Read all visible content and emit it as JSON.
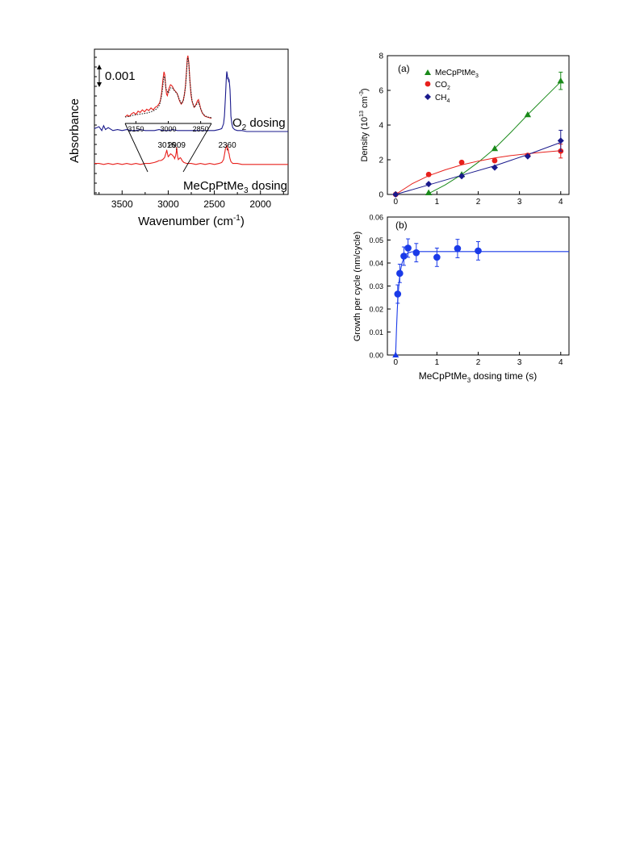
{
  "chart_data": [
    {
      "type": "line",
      "panel": "ir-spectra",
      "xlabel": "Wavenumber (cm",
      "xlabel_sup": "-1",
      "xlabel_tail": ")",
      "ylabel": "Absorbance",
      "xlim": [
        3800,
        1700
      ],
      "x_reversed": true,
      "xticks": [
        3500,
        3000,
        2500,
        2000
      ],
      "xtick_labels": [
        "3500",
        "3000",
        "2500",
        "2000"
      ],
      "scale_bar_label": "0.001",
      "series": [
        {
          "name": "O",
          "name_sub": "2",
          "name_tail": " dosing",
          "color": "#1a1a8c",
          "baseline": 0.0,
          "x": [
            3800,
            3750,
            3720,
            3700,
            3680,
            3650,
            3600,
            3550,
            3500,
            3450,
            3400,
            3350,
            3300,
            3250,
            3200,
            3150,
            3100,
            3050,
            3000,
            2950,
            2900,
            2850,
            2800,
            2750,
            2700,
            2650,
            2600,
            2550,
            2500,
            2450,
            2420,
            2400,
            2390,
            2380,
            2370,
            2365,
            2360,
            2355,
            2350,
            2345,
            2340,
            2335,
            2330,
            2325,
            2320,
            2310,
            2300,
            2280,
            2250,
            2200,
            2150,
            2100,
            2050,
            2000,
            1950,
            1900,
            1850,
            1800,
            1750,
            1700
          ],
          "y": [
            0.0003,
            0.0005,
            0.0001,
            0.0006,
            0.0002,
            0.0004,
            0.0001,
            0.0002,
            0.0001,
            0.0002,
            0.0001,
            0.0001,
            0.0002,
            0.0001,
            0.0001,
            0.0001,
            0.0002,
            0.0001,
            0.0001,
            0.0002,
            0.0001,
            0.0001,
            0.0001,
            0.0001,
            0.0001,
            0.0001,
            0.0001,
            0.0001,
            0.0001,
            0.0002,
            0.0003,
            0.0008,
            0.0016,
            0.0035,
            0.0055,
            0.0062,
            0.0059,
            0.0054,
            0.0056,
            0.0052,
            0.0053,
            0.0049,
            0.0043,
            0.003,
            0.0016,
            0.0008,
            0.0004,
            0.0002,
            0.0001,
            0.0001,
            0.0,
            0.0,
            0.0,
            0.0,
            0.0,
            0.0,
            0.0,
            0.0,
            0.0,
            0.0
          ]
        },
        {
          "name": "MeCpPtMe",
          "name_sub": "3",
          "name_tail": " dosing",
          "color": "#e8201c",
          "baseline": -0.0034,
          "x": [
            3800,
            3750,
            3700,
            3650,
            3600,
            3550,
            3500,
            3450,
            3400,
            3350,
            3300,
            3250,
            3200,
            3150,
            3120,
            3100,
            3080,
            3060,
            3040,
            3030,
            3020,
            3016,
            3010,
            3000,
            2990,
            2975,
            2960,
            2950,
            2940,
            2930,
            2920,
            2912,
            2909,
            2905,
            2898,
            2890,
            2880,
            2870,
            2860,
            2850,
            2840,
            2830,
            2800,
            2750,
            2700,
            2650,
            2600,
            2550,
            2500,
            2450,
            2420,
            2400,
            2390,
            2380,
            2370,
            2365,
            2360,
            2355,
            2350,
            2345,
            2340,
            2335,
            2330,
            2320,
            2300,
            2250,
            2200,
            2100,
            2000,
            1900,
            1800,
            1700
          ],
          "y": [
            0.0001,
            0.0001,
            0.0,
            0.0001,
            0.0,
            0.0001,
            0.0,
            0.0001,
            0.0,
            0.0001,
            0.0,
            0.0001,
            0.0001,
            0.0002,
            0.0003,
            0.0004,
            0.0004,
            0.0005,
            0.0007,
            0.001,
            0.0013,
            0.0015,
            0.0012,
            0.0008,
            0.0009,
            0.0011,
            0.001,
            0.0009,
            0.0008,
            0.0006,
            0.0009,
            0.0013,
            0.0018,
            0.0014,
            0.0008,
            0.0005,
            0.0006,
            0.0007,
            0.0006,
            0.0004,
            0.0003,
            0.0002,
            0.0001,
            0.0001,
            0.0,
            0.0001,
            0.0,
            0.0001,
            0.0,
            0.0001,
            0.0002,
            0.0005,
            0.001,
            0.0016,
            0.0018,
            0.002,
            0.0017,
            0.0015,
            0.0016,
            0.0012,
            0.0011,
            0.0008,
            0.0006,
            0.0003,
            0.0001,
            0.0001,
            0.0,
            0.0,
            0.0,
            0.0,
            0.0,
            0.0
          ]
        }
      ],
      "peak_labels": [
        {
          "x": 3016,
          "label": "3016"
        },
        {
          "x": 2909,
          "label": "2909"
        },
        {
          "x": 2360,
          "label": "2360"
        }
      ],
      "inset": {
        "xlim": [
          3200,
          2800
        ],
        "xticks": [
          3150,
          3000,
          2850
        ],
        "xtick_labels": [
          "3150",
          "3000",
          "2850"
        ],
        "zoom_region": [
          3250,
          2780
        ],
        "series": [
          {
            "color": "#e8201c",
            "style": "solid",
            "x": [
              3200,
              3190,
              3180,
              3170,
              3160,
              3150,
              3140,
              3130,
              3120,
              3110,
              3100,
              3090,
              3080,
              3070,
              3060,
              3050,
              3040,
              3035,
              3030,
              3025,
              3020,
              3016,
              3012,
              3008,
              3004,
              3000,
              2996,
              2990,
              2985,
              2980,
              2975,
              2970,
              2965,
              2960,
              2955,
              2950,
              2945,
              2940,
              2935,
              2930,
              2925,
              2920,
              2915,
              2912,
              2909,
              2905,
              2900,
              2895,
              2890,
              2885,
              2880,
              2875,
              2870,
              2865,
              2860,
              2855,
              2850,
              2845,
              2840,
              2835,
              2830,
              2820,
              2810,
              2800
            ],
            "y": [
              0.05,
              0.08,
              0.06,
              0.1,
              0.12,
              0.09,
              0.14,
              0.12,
              0.16,
              0.13,
              0.17,
              0.15,
              0.19,
              0.16,
              0.2,
              0.22,
              0.27,
              0.33,
              0.45,
              0.62,
              0.75,
              0.7,
              0.52,
              0.4,
              0.38,
              0.45,
              0.5,
              0.55,
              0.54,
              0.52,
              0.48,
              0.46,
              0.44,
              0.42,
              0.38,
              0.32,
              0.28,
              0.25,
              0.27,
              0.32,
              0.4,
              0.55,
              0.78,
              0.95,
              1.0,
              0.9,
              0.62,
              0.4,
              0.3,
              0.24,
              0.2,
              0.22,
              0.26,
              0.3,
              0.32,
              0.25,
              0.18,
              0.13,
              0.1,
              0.08,
              0.06,
              0.05,
              0.04,
              0.03
            ]
          },
          {
            "color": "#222222",
            "style": "dotted",
            "x": [
              3200,
              3180,
              3160,
              3140,
              3120,
              3100,
              3080,
              3060,
              3050,
              3040,
              3030,
              3020,
              3016,
              3010,
              3000,
              2990,
              2980,
              2970,
              2960,
              2950,
              2940,
              2930,
              2920,
              2912,
              2909,
              2905,
              2900,
              2890,
              2880,
              2870,
              2860,
              2850,
              2840,
              2830,
              2820,
              2800
            ],
            "y": [
              0.05,
              0.06,
              0.08,
              0.09,
              0.1,
              0.11,
              0.13,
              0.16,
              0.19,
              0.24,
              0.4,
              0.68,
              0.66,
              0.48,
              0.42,
              0.5,
              0.5,
              0.45,
              0.42,
              0.33,
              0.26,
              0.3,
              0.52,
              0.9,
              0.97,
              0.88,
              0.6,
              0.3,
              0.2,
              0.24,
              0.28,
              0.18,
              0.1,
              0.07,
              0.05,
              0.04
            ]
          }
        ]
      }
    },
    {
      "type": "scatter",
      "panel_label": "(a)",
      "ylabel": "Density (10",
      "ylabel_sup1": "13",
      "ylabel_mid": " cm",
      "ylabel_sup2": "-3",
      "ylabel_tail": ")",
      "xlim": [
        -0.2,
        4.2
      ],
      "ylim": [
        0,
        8
      ],
      "xticks": [
        0,
        1,
        2,
        3,
        4
      ],
      "yticks": [
        0,
        2,
        4,
        6,
        8
      ],
      "legend_position": "top-left",
      "series": [
        {
          "name": "MeCpPtMe",
          "name_sub": "3",
          "color": "#1a8a1a",
          "marker": "triangle",
          "x": [
            0.8,
            1.6,
            2.4,
            3.2,
            4.0
          ],
          "y": [
            0.1,
            1.15,
            2.65,
            4.6,
            6.55
          ],
          "error_at": 4.0,
          "error": 0.5,
          "fit_x": [
            0.8,
            1.2,
            1.6,
            2.0,
            2.4,
            2.8,
            3.2,
            3.6,
            4.0
          ],
          "fit_y": [
            0.05,
            0.55,
            1.15,
            1.85,
            2.65,
            3.6,
            4.6,
            5.55,
            6.5
          ]
        },
        {
          "name": "CO",
          "name_sub": "2",
          "color": "#e8201c",
          "marker": "circle",
          "x": [
            0.0,
            0.8,
            1.6,
            2.4,
            3.2,
            4.0
          ],
          "y": [
            0.0,
            1.15,
            1.85,
            1.95,
            2.25,
            2.5
          ],
          "error_at": 4.0,
          "error": 0.4,
          "fit_x": [
            0.0,
            0.4,
            0.8,
            1.2,
            1.6,
            2.0,
            2.4,
            2.8,
            3.2,
            3.6,
            4.0
          ],
          "fit_y": [
            0.0,
            0.62,
            1.08,
            1.42,
            1.7,
            1.92,
            2.1,
            2.24,
            2.35,
            2.44,
            2.52
          ]
        },
        {
          "name": "CH",
          "name_sub": "4",
          "color": "#1a1a8c",
          "marker": "diamond",
          "x": [
            0.0,
            0.8,
            1.6,
            2.4,
            3.2,
            4.0
          ],
          "y": [
            0.0,
            0.6,
            1.05,
            1.55,
            2.2,
            3.1
          ],
          "error_at": 4.0,
          "error": 0.6,
          "fit_x": [
            0.0,
            0.8,
            1.6,
            2.4,
            3.2,
            4.0
          ],
          "fit_y": [
            0.0,
            0.55,
            1.1,
            1.65,
            2.3,
            3.0
          ]
        }
      ]
    },
    {
      "type": "scatter",
      "panel_label": "(b)",
      "xlabel": "MeCpPtMe",
      "xlabel_sub": "3",
      "xlabel_tail": " dosing time (s)",
      "ylabel": "Growth per cycle (nm/cycle)",
      "xlim": [
        -0.2,
        4.2
      ],
      "ylim": [
        0.0,
        0.06
      ],
      "xticks": [
        0,
        1,
        2,
        3,
        4
      ],
      "yticks": [
        0.0,
        0.01,
        0.02,
        0.03,
        0.04,
        0.05,
        0.06
      ],
      "ytick_labels": [
        "0.00",
        "0.01",
        "0.02",
        "0.03",
        "0.04",
        "0.05",
        "0.06"
      ],
      "series": [
        {
          "color": "#1a3ae8",
          "marker": "circle",
          "x": [
            0.05,
            0.1,
            0.2,
            0.3,
            0.5,
            1.0,
            1.5,
            2.0
          ],
          "y": [
            0.0265,
            0.0355,
            0.043,
            0.0465,
            0.0445,
            0.0425,
            0.0463,
            0.0453
          ],
          "yerr": [
            0.004,
            0.004,
            0.004,
            0.004,
            0.004,
            0.004,
            0.004,
            0.004
          ],
          "zero_point": [
            0.0,
            0.0
          ],
          "fit_x": [
            0.0,
            0.02,
            0.04,
            0.06,
            0.08,
            0.1,
            0.13,
            0.16,
            0.2,
            0.25,
            0.3,
            0.4,
            0.5,
            0.7,
            1.0,
            2.0,
            3.0,
            4.0,
            4.2
          ],
          "fit_y": [
            0.0,
            0.0114,
            0.0199,
            0.0262,
            0.0309,
            0.0344,
            0.0379,
            0.0402,
            0.0422,
            0.0437,
            0.0444,
            0.0449,
            0.045,
            0.045,
            0.045,
            0.045,
            0.045,
            0.045,
            0.045
          ]
        }
      ]
    }
  ]
}
